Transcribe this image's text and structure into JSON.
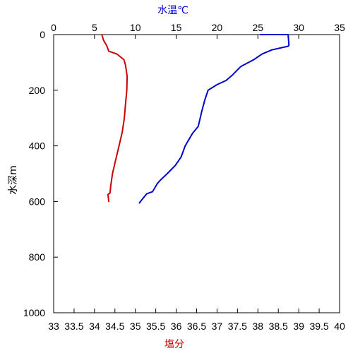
{
  "chart_data": {
    "type": "line",
    "title": "",
    "top_axis": {
      "label": "水温℃",
      "label_color": "#0000cc",
      "range": [
        0,
        35
      ],
      "ticks": [
        "0",
        "5",
        "10",
        "15",
        "20",
        "25",
        "30",
        "35"
      ]
    },
    "bottom_axis": {
      "label": "塩分",
      "label_color": "#cc0000",
      "range": [
        33,
        40
      ],
      "ticks": [
        "33",
        "33.5",
        "34",
        "34.5",
        "35",
        "35.5",
        "36",
        "36.5",
        "37",
        "37.5",
        "38",
        "38.5",
        "39",
        "39.5",
        "40"
      ]
    },
    "y_axis": {
      "label": "水深m",
      "range": [
        0,
        1000
      ],
      "inverted": true,
      "ticks": [
        "0",
        "200",
        "400",
        "600",
        "800",
        "1000"
      ]
    },
    "grid": false,
    "legend": "none",
    "series": [
      {
        "axis": "top",
        "color": "#0000cc",
        "x": [
          25.3,
          28.7,
          28.8,
          28.7,
          26.7,
          25.5,
          24.5,
          22.9,
          21.9,
          21.1,
          20.0,
          18.9,
          18.5,
          18.1,
          17.7,
          17.0,
          16.1,
          15.6,
          14.9,
          13.9,
          13.0,
          12.7,
          12.1,
          11.4,
          10.9,
          10.5
        ],
        "y": [
          0,
          0,
          38,
          42,
          55,
          70,
          90,
          115,
          145,
          165,
          180,
          200,
          235,
          280,
          330,
          355,
          400,
          440,
          470,
          500,
          525,
          535,
          565,
          572,
          590,
          605
        ]
      },
      {
        "axis": "bottom",
        "color": "#cc0000",
        "x": [
          34.18,
          34.22,
          34.3,
          34.35,
          34.55,
          34.72,
          34.76,
          34.8,
          34.79,
          34.76,
          34.73,
          34.68,
          34.6,
          34.52,
          34.44,
          34.42,
          34.4,
          34.38,
          34.33,
          34.35
        ],
        "y": [
          0,
          20,
          40,
          60,
          70,
          90,
          110,
          150,
          200,
          250,
          300,
          350,
          400,
          450,
          500,
          520,
          540,
          570,
          575,
          600
        ]
      }
    ]
  }
}
